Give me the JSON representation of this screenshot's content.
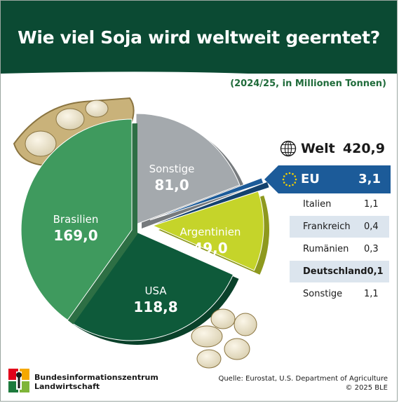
{
  "header": {
    "title": "Wie viel Soja wird weltweit geerntet?",
    "subtitle": "(2024/25, in Millionen Tonnen)"
  },
  "world": {
    "label": "Welt",
    "value": "420,9"
  },
  "eu": {
    "label": "EU",
    "value": "3,1"
  },
  "eu_breakdown": [
    {
      "name": "Italien",
      "value": "1,1",
      "bold": false
    },
    {
      "name": "Frankreich",
      "value": "0,4",
      "bold": false
    },
    {
      "name": "Rumänien",
      "value": "0,3",
      "bold": false
    },
    {
      "name": "Deutschland",
      "value": "0,1",
      "bold": true
    },
    {
      "name": "Sonstige",
      "value": "1,1",
      "bold": false
    }
  ],
  "chart_data": {
    "type": "pie",
    "title": "Wie viel Soja wird weltweit geerntet?",
    "subtitle": "(2024/25, in Millionen Tonnen)",
    "total": 420.9,
    "slices": [
      {
        "name": "Sonstige",
        "value": 81.0,
        "label": "81,0",
        "color": "#a4a9ad"
      },
      {
        "name": "EU",
        "value": 3.1,
        "label": "3,1",
        "color": "#1c5b99"
      },
      {
        "name": "Argentinien",
        "value": 49.0,
        "label": "49,0",
        "color": "#c5d42a"
      },
      {
        "name": "USA",
        "value": 118.8,
        "label": "118,8",
        "color": "#0e5a3a"
      },
      {
        "name": "Brasilien",
        "value": 169.0,
        "label": "169,0",
        "color": "#3f9a5e"
      }
    ]
  },
  "colors": {
    "header_bg": "#0b4a33",
    "accent_green": "#1f6b3a",
    "eu_blue": "#1c5b99",
    "table_shade": "#dce5ee"
  },
  "footer": {
    "org_line1": "Bundesinformationszentrum",
    "org_line2": "Landwirtschaft",
    "source": "Quelle: Eurostat, U.S. Department of Agriculture",
    "copyright": "© 2025 BLE"
  }
}
